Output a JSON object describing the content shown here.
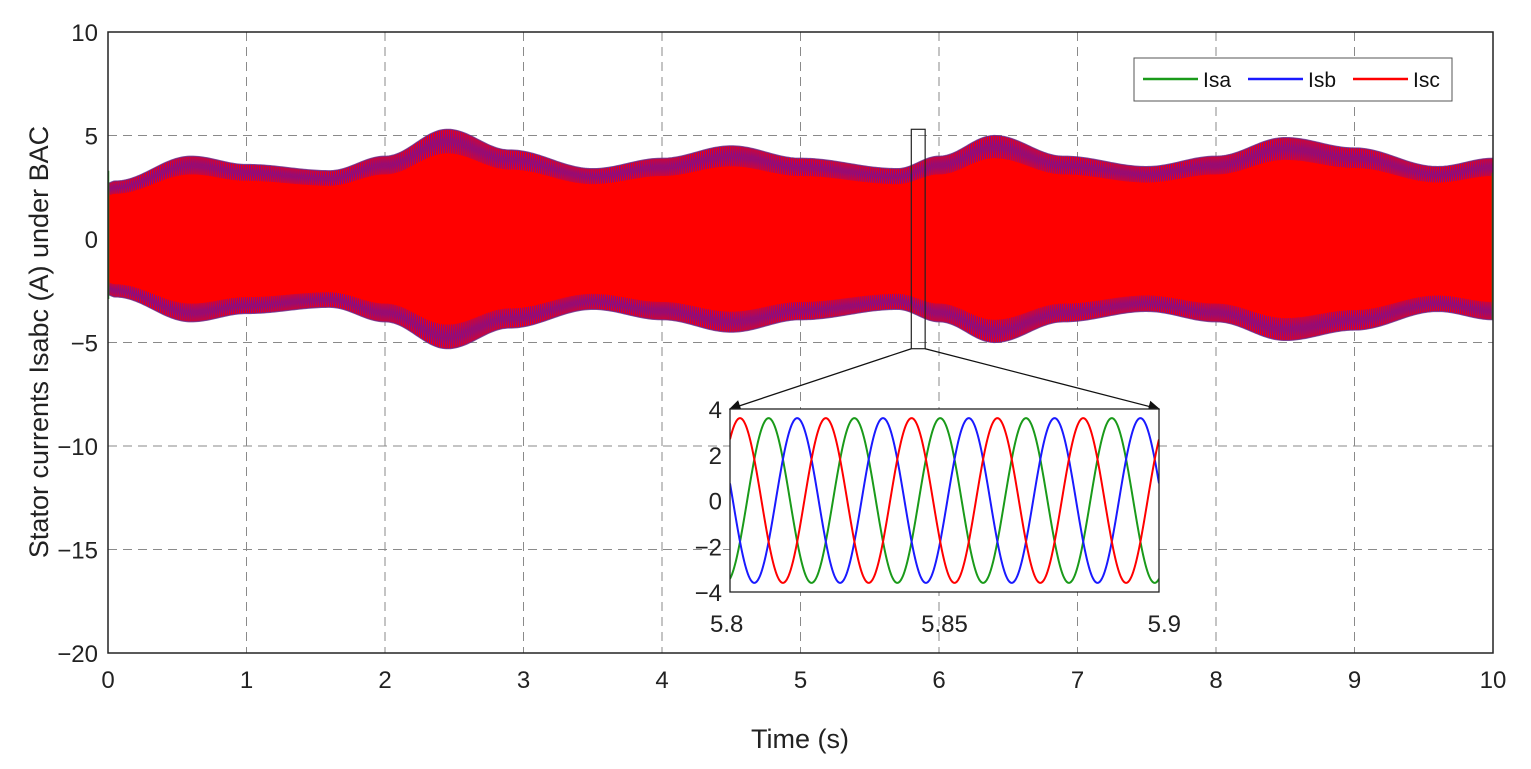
{
  "chart_data": [
    {
      "type": "line",
      "xlabel": "Time (s)",
      "ylabel": "Stator currents Isabc (A) under BAC",
      "xlim": [
        0,
        10
      ],
      "ylim": [
        -20,
        10
      ],
      "xticks": [
        "0",
        "1",
        "2",
        "3",
        "4",
        "5",
        "6",
        "7",
        "8",
        "9",
        "10"
      ],
      "yticks": [
        "10",
        "5",
        "0",
        "−5",
        "−10",
        "−15",
        "−20"
      ],
      "grid": "dashed",
      "legend_position": "top-right",
      "envelope_amplitude": {
        "x": [
          0,
          0.05,
          0.6,
          1.0,
          1.6,
          2.0,
          2.45,
          2.9,
          3.5,
          4.0,
          4.5,
          5.0,
          5.7,
          6.0,
          6.4,
          6.9,
          7.5,
          8.0,
          8.5,
          9.0,
          9.6,
          10.0
        ],
        "y": [
          2.7,
          2.8,
          4.0,
          3.6,
          3.3,
          4.0,
          5.3,
          4.3,
          3.4,
          3.9,
          4.5,
          3.9,
          3.4,
          4.0,
          5.0,
          4.0,
          3.5,
          4.0,
          4.9,
          4.4,
          3.5,
          3.9
        ]
      },
      "series": [
        {
          "name": "Isa",
          "color": "#1a9a1a"
        },
        {
          "name": "Isb",
          "color": "#1a1aff"
        },
        {
          "name": "Isc",
          "color": "#ff0000"
        }
      ],
      "zoom_window": {
        "x": [
          5.8,
          5.9
        ],
        "y": [
          -5.3,
          5.3
        ]
      }
    },
    {
      "type": "line",
      "title": "",
      "xlim": [
        5.8,
        5.9
      ],
      "ylim": [
        -4,
        4
      ],
      "xticks": [
        "5.8",
        "5.85",
        "5.9"
      ],
      "yticks": [
        "4",
        "2",
        "0",
        "−2",
        "−4"
      ],
      "frequency_hz": 50,
      "amplitude": 3.6,
      "series": [
        {
          "name": "Isa",
          "color": "#1a9a1a",
          "phase_deg": -72
        },
        {
          "name": "Isb",
          "color": "#1a1aff",
          "phase_deg": -192
        },
        {
          "name": "Isc",
          "color": "#ff0000",
          "phase_deg": 48
        }
      ]
    }
  ]
}
